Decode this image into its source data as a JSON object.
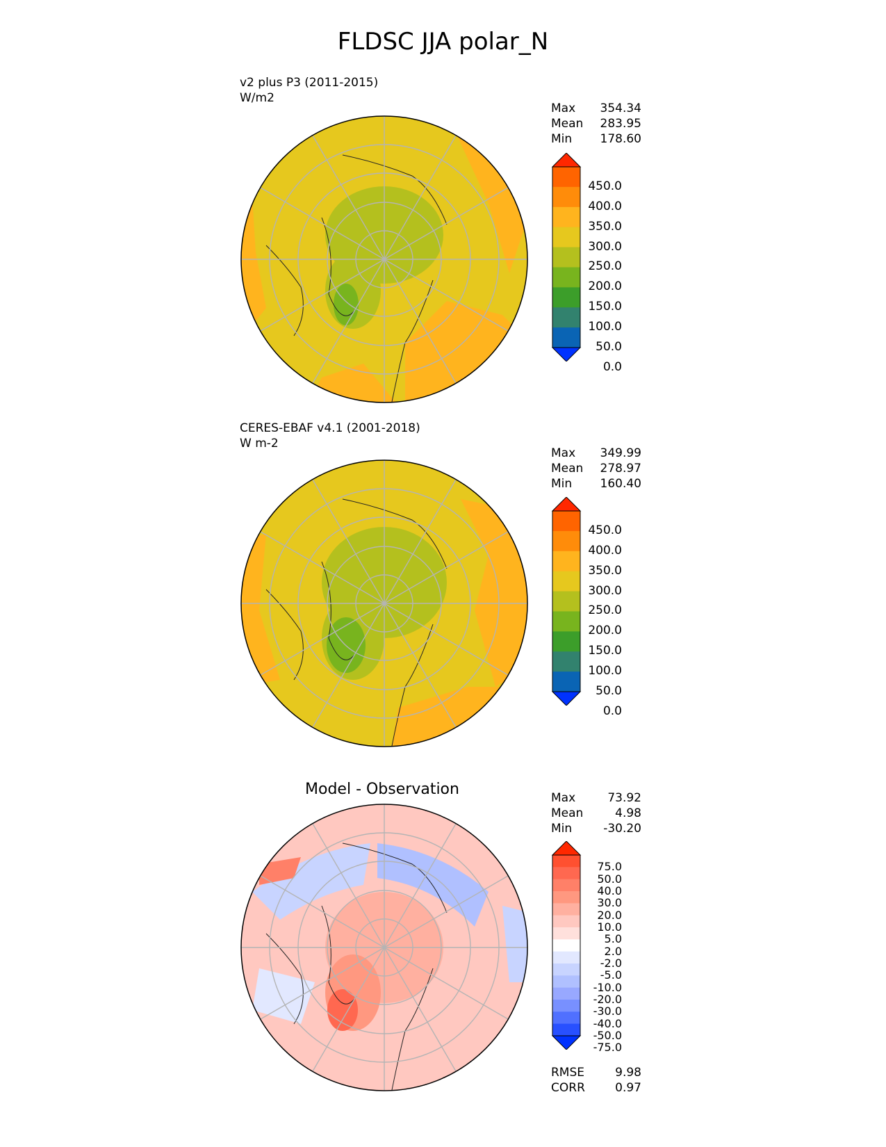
{
  "figure": {
    "title": "FLDSC JJA polar_N"
  },
  "panels": [
    {
      "label_line1": "v2 plus P3 (2011-2015)",
      "label_line2": "W/m2",
      "stats": {
        "max_label": "Max",
        "max": "354.34",
        "mean_label": "Mean",
        "mean": "283.95",
        "min_label": "Min",
        "min": "178.60"
      },
      "colorbar_ticks": [
        "450.0",
        "400.0",
        "350.0",
        "300.0",
        "250.0",
        "200.0",
        "150.0",
        "100.0",
        "50.0",
        "0.0"
      ]
    },
    {
      "label_line1": "CERES-EBAF v4.1 (2001-2018)",
      "label_line2": "W m-2",
      "stats": {
        "max_label": "Max",
        "max": "349.99",
        "mean_label": "Mean",
        "mean": "278.97",
        "min_label": "Min",
        "min": "160.40"
      },
      "colorbar_ticks": [
        "450.0",
        "400.0",
        "350.0",
        "300.0",
        "250.0",
        "200.0",
        "150.0",
        "100.0",
        "50.0",
        "0.0"
      ]
    },
    {
      "title": "Model - Observation",
      "stats": {
        "max_label": "Max",
        "max": "73.92",
        "mean_label": "Mean",
        "mean": "4.98",
        "min_label": "Min",
        "min": "-30.20"
      },
      "colorbar_ticks": [
        "75.0",
        "50.0",
        "40.0",
        "30.0",
        "20.0",
        "10.0",
        "5.0",
        "2.0",
        "-2.0",
        "-5.0",
        "-10.0",
        "-20.0",
        "-30.0",
        "-40.0",
        "-50.0",
        "-75.0"
      ],
      "metrics": {
        "rmse_label": "RMSE",
        "rmse": "9.98",
        "corr_label": "CORR",
        "corr": "0.97"
      }
    }
  ],
  "colors": {
    "abs_scale": [
      "#0032ff",
      "#0a64b4",
      "#32826e",
      "#3c9e2a",
      "#78b41e",
      "#b4c01e",
      "#e6c81e",
      "#ffb41e",
      "#ff8c0a",
      "#ff6400",
      "#ff2800"
    ],
    "diff_scale": [
      "#0032ff",
      "#2850ff",
      "#5070ff",
      "#7890ff",
      "#98a8ff",
      "#b0c0ff",
      "#c8d4ff",
      "#e2e8ff",
      "#ffffff",
      "#ffe0dc",
      "#ffc8c0",
      "#ffb0a0",
      "#ff9880",
      "#ff8068",
      "#ff6850",
      "#ff5030",
      "#ff2800"
    ]
  }
}
